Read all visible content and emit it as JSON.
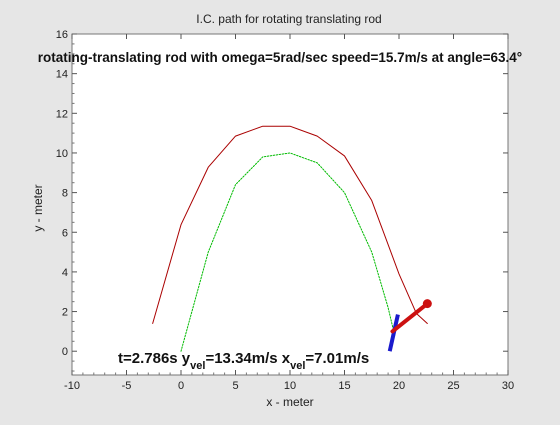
{
  "window": {
    "background": "#e6e6e6"
  },
  "chart_data": {
    "type": "line",
    "title": "I.C. path for rotating translating rod",
    "subtitle": "rotating-translating rod with omega=5rad/sec speed=15.7m/s at angle=63.4°",
    "xlabel": "x - meter",
    "ylabel": "y - meter",
    "xlim": [
      -10,
      30
    ],
    "ylim": [
      -1.2,
      16
    ],
    "x_ticks": [
      -10,
      -5,
      0,
      5,
      10,
      15,
      20,
      25,
      30
    ],
    "y_ticks": [
      0,
      2,
      4,
      6,
      8,
      10,
      12,
      14,
      16
    ],
    "grid": false,
    "series": [
      {
        "color": "#aa0000",
        "style": "solid",
        "x": [
          -2.6,
          0.0,
          2.5,
          5.0,
          7.5,
          10.0,
          12.5,
          15.0,
          17.5,
          20.0,
          21.6,
          22.6
        ],
        "y": [
          1.4,
          6.38,
          9.28,
          10.85,
          11.35,
          11.35,
          10.85,
          9.85,
          7.6,
          3.9,
          1.9,
          1.4
        ]
      },
      {
        "color": "#00bb00",
        "style": "dotted",
        "x": [
          0.0,
          2.5,
          5.0,
          7.5,
          10.0,
          12.5,
          15.0,
          17.5,
          19.0,
          19.6
        ],
        "y": [
          0.0,
          5.0,
          8.4,
          9.8,
          10.0,
          9.5,
          8.0,
          5.0,
          2.2,
          0.8
        ]
      }
    ],
    "rod": {
      "color": "#cc1111",
      "x": [
        19.4,
        22.6
      ],
      "y": [
        1.0,
        2.4
      ]
    },
    "velocity_marker": {
      "color": "#1a1acc",
      "x": [
        19.15,
        19.9
      ],
      "y": [
        0.0,
        1.85
      ]
    },
    "annotation": {
      "part1": "t=2.786s y",
      "sub1": "vel",
      "part2": "=13.34m/s x",
      "sub2": "vel",
      "part3": "=7.01m/s"
    }
  }
}
